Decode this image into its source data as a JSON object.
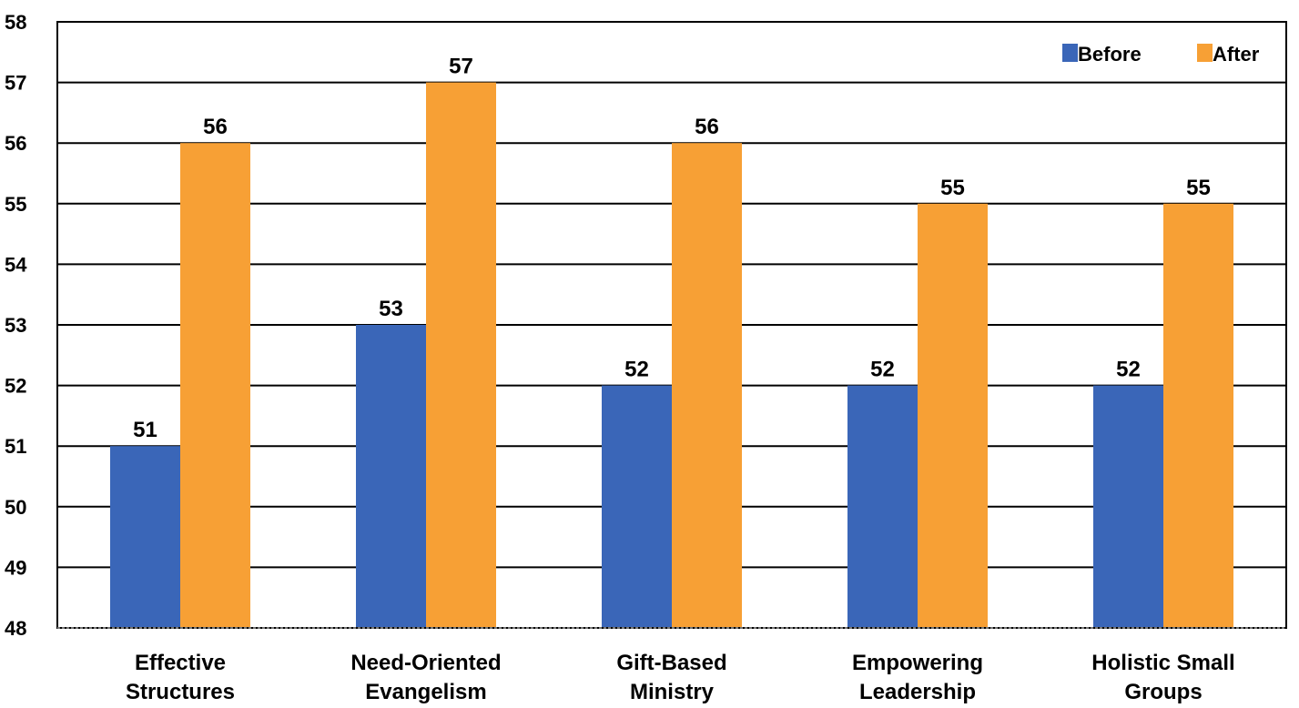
{
  "chart_data": {
    "type": "bar",
    "title": "",
    "xlabel": "",
    "ylabel": "",
    "categories": [
      [
        "Effective",
        "Structures"
      ],
      [
        "Need-Oriented",
        "Evangelism"
      ],
      [
        "Gift-Based",
        "Ministry"
      ],
      [
        "Empowering",
        "Leadership"
      ],
      [
        "Holistic Small",
        "Groups"
      ]
    ],
    "series": [
      {
        "name": "Before",
        "color": "#3a66b8",
        "values": [
          51,
          53,
          52,
          52,
          52
        ]
      },
      {
        "name": "After",
        "color": "#f7a035",
        "values": [
          56,
          57,
          56,
          55,
          55
        ]
      }
    ],
    "y_ticks": [
      "48",
      "49",
      "50",
      "51",
      "52",
      "53",
      "54",
      "55",
      "56",
      "57",
      "58"
    ],
    "ylim": [
      48,
      58
    ],
    "grid": true,
    "legend_position": "top-right"
  }
}
